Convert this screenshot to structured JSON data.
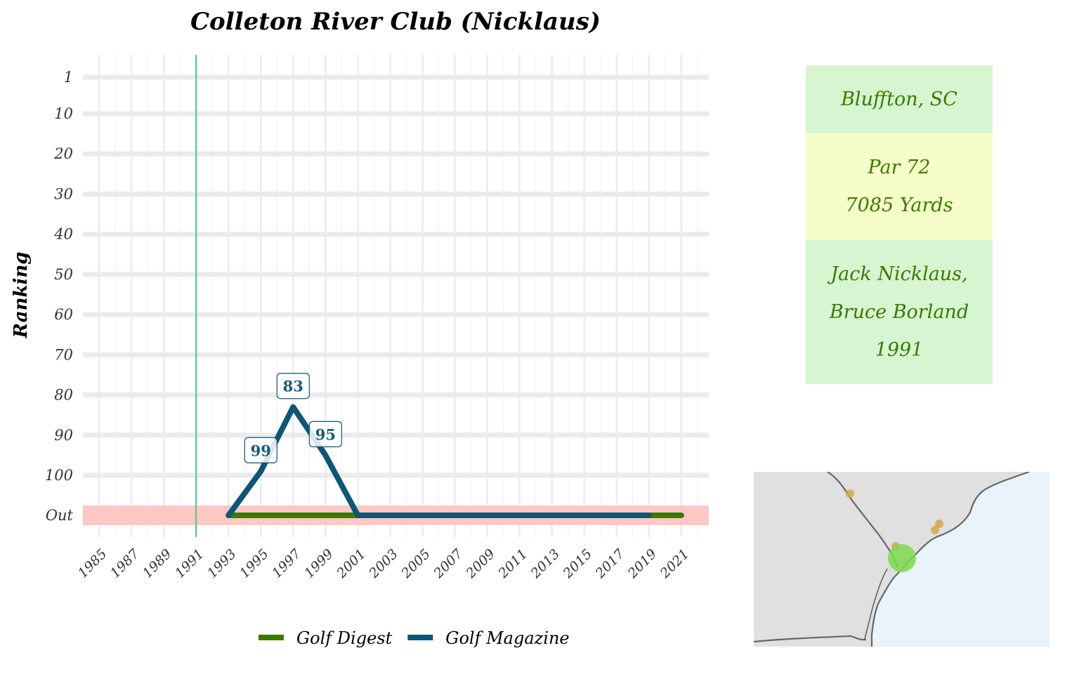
{
  "chart_data": {
    "type": "line",
    "title": "Colleton River Club (Nicklaus)",
    "xlabel": "",
    "ylabel": "Ranking",
    "x_ticks": [
      "1985",
      "1987",
      "1989",
      "1991",
      "1993",
      "1995",
      "1997",
      "1999",
      "2001",
      "2003",
      "2005",
      "2007",
      "2009",
      "2011",
      "2013",
      "2015",
      "2017",
      "2019",
      "2021"
    ],
    "xlim": [
      1984,
      2022.7
    ],
    "y_ticks": [
      "1",
      "10",
      "20",
      "30",
      "40",
      "50",
      "60",
      "70",
      "80",
      "90",
      "100",
      "Out"
    ],
    "reference_year": 1991,
    "series": [
      {
        "name": "Golf Digest",
        "color": "#3a7a00",
        "x": [
          1993,
          2021
        ],
        "y": [
          "Out",
          "Out"
        ]
      },
      {
        "name": "Golf Magazine",
        "color": "#0f5574",
        "x": [
          1993,
          1995,
          1997,
          1999,
          2001,
          2019
        ],
        "y": [
          "Out",
          99,
          83,
          95,
          "Out",
          "Out"
        ]
      }
    ],
    "data_labels": [
      {
        "x": 1995,
        "y": 99,
        "text": "99"
      },
      {
        "x": 1997,
        "y": 83,
        "text": "83"
      },
      {
        "x": 1999,
        "y": 95,
        "text": "95"
      }
    ],
    "legend_position": "bottom",
    "grid": true
  },
  "info": {
    "location": "Bluffton, SC",
    "par": "Par 72",
    "yards": "7085 Yards",
    "architect_line1": "Jack Nicklaus,",
    "architect_line2": "Bruce Borland",
    "year": "1991"
  },
  "colors": {
    "info_green": "#d6f5d0",
    "info_yellow": "#f5fdc8",
    "out_band": "#ffc8c4",
    "reference_line": "#5cc49a",
    "map_land": "#e0e0e0",
    "map_water": "#e8f3fc",
    "map_border": "#666666",
    "map_highlight": "#7ed84f",
    "map_other_course": "#d8a54a"
  }
}
